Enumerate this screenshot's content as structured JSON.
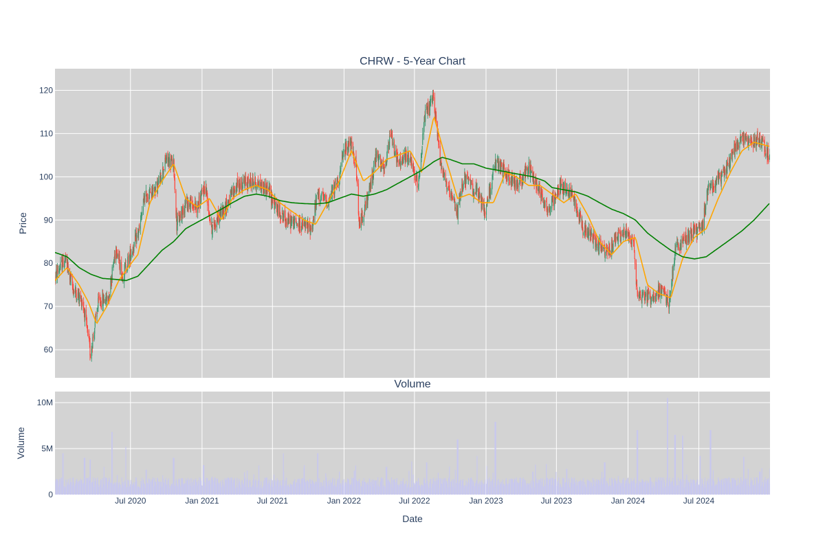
{
  "chart_data": [
    {
      "type": "candlestick",
      "title": "CHRW - 5-Year Chart",
      "ylabel": "Price",
      "ylim": [
        53.5,
        125
      ],
      "yticks": [
        60,
        70,
        80,
        90,
        100,
        110,
        120
      ],
      "x_range": [
        "2019-12-20",
        "2024-12-31"
      ],
      "grid": true,
      "legend": "none",
      "colors": {
        "background": "#d3d3d3",
        "up": "#3d9970",
        "down": "#ff4136",
        "short_ma": "#ffa500",
        "long_ma": "#008000"
      },
      "price_path": [
        [
          "2019-12-20",
          77
        ],
        [
          "2020-01-15",
          81
        ],
        [
          "2020-02-05",
          74
        ],
        [
          "2020-03-01",
          71
        ],
        [
          "2020-03-20",
          59
        ],
        [
          "2020-04-10",
          71
        ],
        [
          "2020-05-05",
          72
        ],
        [
          "2020-05-25",
          84
        ],
        [
          "2020-06-10",
          77
        ],
        [
          "2020-07-05",
          83
        ],
        [
          "2020-07-25",
          88
        ],
        [
          "2020-08-05",
          95
        ],
        [
          "2020-09-10",
          98
        ],
        [
          "2020-10-01",
          104
        ],
        [
          "2020-10-20",
          103
        ],
        [
          "2020-10-28",
          89
        ],
        [
          "2020-11-20",
          94
        ],
        [
          "2020-12-20",
          93
        ],
        [
          "2021-01-10",
          98
        ],
        [
          "2021-01-25",
          88
        ],
        [
          "2021-03-01",
          93
        ],
        [
          "2021-04-01",
          98
        ],
        [
          "2021-05-10",
          99
        ],
        [
          "2021-06-20",
          97
        ],
        [
          "2021-07-10",
          93
        ],
        [
          "2021-08-05",
          90
        ],
        [
          "2021-09-10",
          89
        ],
        [
          "2021-10-10",
          88
        ],
        [
          "2021-10-25",
          96
        ],
        [
          "2021-11-20",
          94
        ],
        [
          "2021-12-20",
          100
        ],
        [
          "2022-01-01",
          106
        ],
        [
          "2022-01-15",
          108
        ],
        [
          "2022-02-01",
          103
        ],
        [
          "2022-02-08",
          89
        ],
        [
          "2022-03-01",
          94
        ],
        [
          "2022-03-25",
          105
        ],
        [
          "2022-04-15",
          101
        ],
        [
          "2022-05-01",
          110
        ],
        [
          "2022-05-20",
          103
        ],
        [
          "2022-06-15",
          105
        ],
        [
          "2022-07-10",
          98
        ],
        [
          "2022-07-28",
          114
        ],
        [
          "2022-08-20",
          118
        ],
        [
          "2022-09-05",
          104
        ],
        [
          "2022-09-28",
          96
        ],
        [
          "2022-10-20",
          92
        ],
        [
          "2022-11-05",
          100
        ],
        [
          "2022-12-10",
          96
        ],
        [
          "2022-12-30",
          92
        ],
        [
          "2023-01-25",
          103
        ],
        [
          "2023-02-20",
          101
        ],
        [
          "2023-03-20",
          98
        ],
        [
          "2023-04-20",
          102
        ],
        [
          "2023-05-20",
          97
        ],
        [
          "2023-06-10",
          92
        ],
        [
          "2023-07-10",
          98
        ],
        [
          "2023-08-10",
          96
        ],
        [
          "2023-09-10",
          88
        ],
        [
          "2023-10-10",
          85
        ],
        [
          "2023-11-10",
          82
        ],
        [
          "2023-12-01",
          86
        ],
        [
          "2023-12-30",
          87
        ],
        [
          "2024-01-15",
          85
        ],
        [
          "2024-01-25",
          73
        ],
        [
          "2024-03-01",
          72
        ],
        [
          "2024-03-30",
          74
        ],
        [
          "2024-04-15",
          70
        ],
        [
          "2024-05-01",
          83
        ],
        [
          "2024-06-10",
          87
        ],
        [
          "2024-07-10",
          88
        ],
        [
          "2024-07-25",
          98
        ],
        [
          "2024-08-20",
          99
        ],
        [
          "2024-09-10",
          102
        ],
        [
          "2024-10-15",
          109
        ],
        [
          "2024-11-15",
          108
        ],
        [
          "2024-12-05",
          109
        ],
        [
          "2024-12-31",
          104
        ]
      ],
      "short_ma": [
        [
          "2019-12-20",
          76
        ],
        [
          "2020-01-20",
          79
        ],
        [
          "2020-02-20",
          75
        ],
        [
          "2020-03-15",
          71
        ],
        [
          "2020-04-05",
          66
        ],
        [
          "2020-05-01",
          70
        ],
        [
          "2020-06-01",
          76
        ],
        [
          "2020-06-25",
          79
        ],
        [
          "2020-07-20",
          82
        ],
        [
          "2020-08-20",
          94
        ],
        [
          "2020-09-20",
          99
        ],
        [
          "2020-10-20",
          103
        ],
        [
          "2020-11-20",
          95
        ],
        [
          "2020-12-20",
          93
        ],
        [
          "2021-01-20",
          95
        ],
        [
          "2021-02-20",
          90
        ],
        [
          "2021-03-20",
          95
        ],
        [
          "2021-04-20",
          97
        ],
        [
          "2021-05-20",
          98
        ],
        [
          "2021-06-20",
          97
        ],
        [
          "2021-07-20",
          94
        ],
        [
          "2021-08-20",
          92
        ],
        [
          "2021-09-20",
          90
        ],
        [
          "2021-10-20",
          89
        ],
        [
          "2021-11-20",
          94
        ],
        [
          "2021-12-20",
          99
        ],
        [
          "2022-01-20",
          106
        ],
        [
          "2022-02-20",
          99
        ],
        [
          "2022-03-20",
          101
        ],
        [
          "2022-04-20",
          104
        ],
        [
          "2022-05-20",
          105
        ],
        [
          "2022-06-20",
          106
        ],
        [
          "2022-07-20",
          101
        ],
        [
          "2022-08-20",
          114
        ],
        [
          "2022-09-20",
          104
        ],
        [
          "2022-10-20",
          95
        ],
        [
          "2022-11-20",
          96
        ],
        [
          "2022-12-20",
          94
        ],
        [
          "2023-01-20",
          94
        ],
        [
          "2023-02-20",
          101
        ],
        [
          "2023-03-20",
          100
        ],
        [
          "2023-04-20",
          98
        ],
        [
          "2023-05-20",
          98
        ],
        [
          "2023-06-20",
          96
        ],
        [
          "2023-07-20",
          94
        ],
        [
          "2023-08-20",
          96
        ],
        [
          "2023-09-20",
          91
        ],
        [
          "2023-10-20",
          85
        ],
        [
          "2023-11-20",
          82
        ],
        [
          "2023-12-20",
          85
        ],
        [
          "2024-01-20",
          86
        ],
        [
          "2024-02-20",
          75
        ],
        [
          "2024-03-20",
          73
        ],
        [
          "2024-04-20",
          72
        ],
        [
          "2024-05-20",
          81
        ],
        [
          "2024-06-20",
          86
        ],
        [
          "2024-07-20",
          88
        ],
        [
          "2024-08-20",
          95
        ],
        [
          "2024-09-20",
          101
        ],
        [
          "2024-10-20",
          106
        ],
        [
          "2024-11-20",
          108
        ],
        [
          "2024-12-31",
          107
        ]
      ],
      "long_ma": [
        [
          "2019-12-20",
          82.5
        ],
        [
          "2020-01-20",
          81.5
        ],
        [
          "2020-02-20",
          79
        ],
        [
          "2020-03-20",
          77.5
        ],
        [
          "2020-04-20",
          76.5
        ],
        [
          "2020-05-20",
          76.3
        ],
        [
          "2020-06-20",
          76
        ],
        [
          "2020-07-20",
          77
        ],
        [
          "2020-08-20",
          80
        ],
        [
          "2020-09-20",
          83
        ],
        [
          "2020-10-20",
          85
        ],
        [
          "2020-11-20",
          88
        ],
        [
          "2020-12-20",
          89.5
        ],
        [
          "2021-01-20",
          91
        ],
        [
          "2021-02-20",
          92.5
        ],
        [
          "2021-03-20",
          94
        ],
        [
          "2021-04-20",
          95.5
        ],
        [
          "2021-05-20",
          96
        ],
        [
          "2021-06-20",
          95.5
        ],
        [
          "2021-07-20",
          94.5
        ],
        [
          "2021-08-20",
          94
        ],
        [
          "2021-09-20",
          93.8
        ],
        [
          "2021-10-20",
          93.7
        ],
        [
          "2021-11-20",
          94
        ],
        [
          "2021-12-20",
          95
        ],
        [
          "2022-01-20",
          96
        ],
        [
          "2022-02-20",
          95.5
        ],
        [
          "2022-03-20",
          96
        ],
        [
          "2022-04-20",
          97
        ],
        [
          "2022-05-20",
          98.5
        ],
        [
          "2022-06-20",
          100
        ],
        [
          "2022-07-20",
          101.5
        ],
        [
          "2022-08-20",
          103.5
        ],
        [
          "2022-09-10",
          104.5
        ],
        [
          "2022-10-01",
          104
        ],
        [
          "2022-11-01",
          103
        ],
        [
          "2022-12-01",
          103
        ],
        [
          "2023-01-01",
          102
        ],
        [
          "2023-02-01",
          101.5
        ],
        [
          "2023-03-01",
          101
        ],
        [
          "2023-04-01",
          100.5
        ],
        [
          "2023-05-01",
          100
        ],
        [
          "2023-06-01",
          99
        ],
        [
          "2023-06-20",
          97.5
        ],
        [
          "2023-07-20",
          97
        ],
        [
          "2023-08-20",
          96.5
        ],
        [
          "2023-09-20",
          95.5
        ],
        [
          "2023-10-20",
          94
        ],
        [
          "2023-11-20",
          92.5
        ],
        [
          "2023-12-20",
          91.5
        ],
        [
          "2024-01-20",
          90
        ],
        [
          "2024-02-20",
          87
        ],
        [
          "2024-03-20",
          85
        ],
        [
          "2024-04-20",
          83
        ],
        [
          "2024-05-20",
          81.5
        ],
        [
          "2024-06-20",
          81
        ],
        [
          "2024-07-20",
          81.5
        ],
        [
          "2024-08-20",
          83.5
        ],
        [
          "2024-09-20",
          85.5
        ],
        [
          "2024-10-20",
          87.5
        ],
        [
          "2024-11-20",
          90
        ],
        [
          "2024-12-31",
          94
        ]
      ]
    },
    {
      "type": "bar",
      "title": "Volume",
      "xlabel": "Date",
      "ylabel": "Volume",
      "ylim": [
        0,
        11200000
      ],
      "yticks": [
        {
          "value": 0,
          "label": "0"
        },
        {
          "value": 5000000,
          "label": "5M"
        },
        {
          "value": 10000000,
          "label": "10M"
        }
      ],
      "xticks": [
        {
          "value": "2020-07-01",
          "label": "Jul 2020"
        },
        {
          "value": "2021-01-01",
          "label": "Jan 2021"
        },
        {
          "value": "2021-07-01",
          "label": "Jul 2021"
        },
        {
          "value": "2022-01-01",
          "label": "Jan 2022"
        },
        {
          "value": "2022-07-01",
          "label": "Jul 2022"
        },
        {
          "value": "2023-01-01",
          "label": "Jan 2023"
        },
        {
          "value": "2023-07-01",
          "label": "Jul 2023"
        },
        {
          "value": "2024-01-01",
          "label": "Jan 2024"
        },
        {
          "value": "2024-07-01",
          "label": "Jul 2024"
        }
      ],
      "baseline_volume": 1300000,
      "spikes": [
        [
          "2020-01-10",
          4500000
        ],
        [
          "2020-03-05",
          4000000
        ],
        [
          "2020-03-20",
          3800000
        ],
        [
          "2020-04-25",
          3000000
        ],
        [
          "2020-05-15",
          6800000
        ],
        [
          "2020-06-20",
          5200000
        ],
        [
          "2020-08-10",
          2700000
        ],
        [
          "2020-10-20",
          4000000
        ],
        [
          "2021-01-05",
          3200000
        ],
        [
          "2021-05-15",
          2200000
        ],
        [
          "2021-07-30",
          2500000
        ],
        [
          "2021-10-25",
          4500000
        ],
        [
          "2022-01-28",
          2600000
        ],
        [
          "2022-04-20",
          3000000
        ],
        [
          "2022-06-25",
          3600000
        ],
        [
          "2022-08-01",
          3500000
        ],
        [
          "2022-10-20",
          6000000
        ],
        [
          "2022-12-10",
          4200000
        ],
        [
          "2023-01-25",
          7900000
        ],
        [
          "2023-05-01",
          2500000
        ],
        [
          "2023-07-28",
          2800000
        ],
        [
          "2023-11-02",
          3500000
        ],
        [
          "2024-01-25",
          7000000
        ],
        [
          "2024-04-12",
          10500000
        ],
        [
          "2024-05-01",
          6500000
        ],
        [
          "2024-05-20",
          6400000
        ],
        [
          "2024-07-05",
          4200000
        ],
        [
          "2024-07-31",
          7000000
        ],
        [
          "2024-10-25",
          4100000
        ],
        [
          "2024-12-05",
          2500000
        ]
      ]
    }
  ]
}
